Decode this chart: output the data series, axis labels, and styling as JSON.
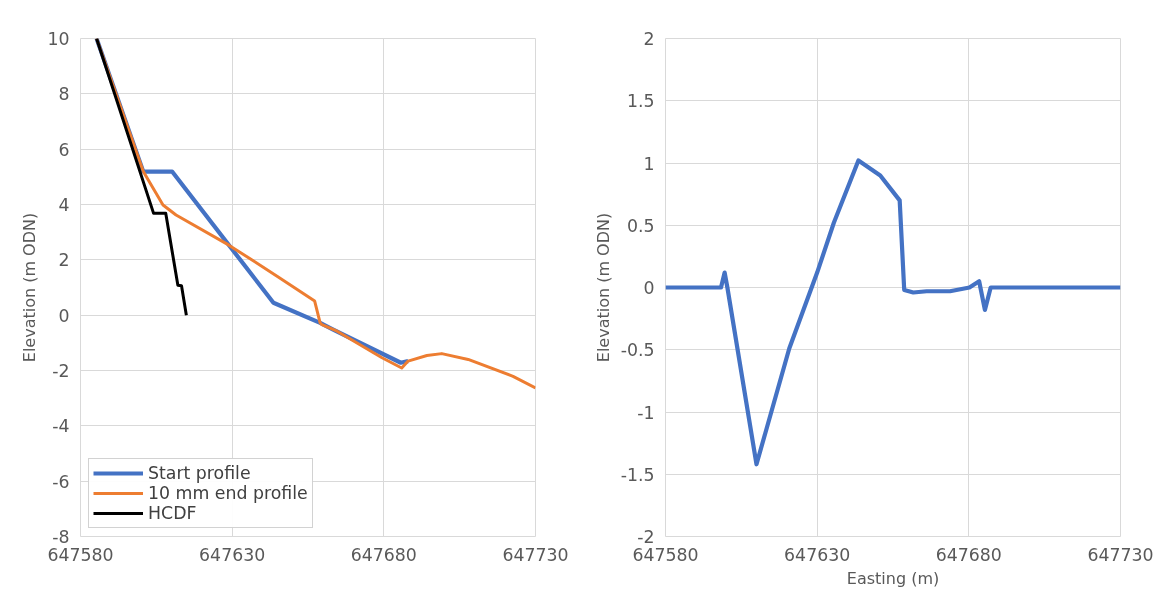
{
  "chart_data": [
    {
      "type": "line",
      "ylabel": "Elevation (m ODN)",
      "xlim": [
        647580,
        647730
      ],
      "ylim": [
        -8,
        10
      ],
      "xticks": [
        647580,
        647630,
        647680,
        647730
      ],
      "yticks": [
        -8,
        -6,
        -4,
        -2,
        0,
        2,
        4,
        6,
        8,
        10
      ],
      "grid": true,
      "legend": "bottom left",
      "line_style": "solid",
      "marker": "none",
      "series": [
        {
          "name": "Start profile",
          "color": "#4472c4",
          "x": [
            647585.3,
            647600.7,
            647610.2,
            647643.6,
            647659.0,
            647663.3,
            647685.6,
            647688.0
          ],
          "values": [
            10,
            5.19,
            5.19,
            0.45,
            -0.28,
            -0.52,
            -1.72,
            -1.66
          ]
        },
        {
          "name": "10 mm end profile",
          "color": "#ed7d31",
          "x": [
            647585.3,
            647600.7,
            647607.2,
            647611.5,
            647628.8,
            647644.8,
            647657.2,
            647659.0,
            647659.6,
            647664.6,
            647679.4,
            647685.9,
            647688.0,
            647694.2,
            647699.1,
            647707.8,
            647722.6,
            647730.0
          ],
          "values": [
            10,
            5.19,
            3.98,
            3.62,
            2.54,
            1.41,
            0.51,
            -0.28,
            -0.34,
            -0.58,
            -1.54,
            -1.91,
            -1.66,
            -1.46,
            -1.39,
            -1.6,
            -2.21,
            -2.63
          ]
        },
        {
          "name": "HCDF",
          "color": "#000000",
          "x": [
            647585.3,
            647604.1,
            647608.1,
            647612.1,
            647613.3,
            647614.9
          ],
          "values": [
            10,
            3.68,
            3.68,
            1.08,
            1.06,
            0
          ]
        }
      ]
    },
    {
      "type": "line",
      "xlabel": "Easting (m)",
      "ylabel": "Elevation (m ODN)",
      "xlim": [
        647580,
        647730
      ],
      "ylim": [
        -2,
        2
      ],
      "xticks": [
        647580,
        647630,
        647680,
        647730
      ],
      "yticks": [
        -2,
        -1.5,
        -1,
        -0.5,
        0,
        0.5,
        1,
        1.5,
        2
      ],
      "grid": true,
      "line_style": "solid",
      "marker": "none",
      "series": [
        {
          "color": "#4472c4",
          "x": [
            647580,
            647598.3,
            647599.5,
            647600.4,
            647610.0,
            647620.8,
            647630,
            647635.5,
            647643.6,
            647650.8,
            647657.2,
            647658.7,
            647661.7,
            647666.1,
            647673.8,
            647680.2,
            647683.4,
            647685.3,
            647687.2,
            647730
          ],
          "values": [
            0,
            0,
            0.12,
            0,
            -1.42,
            -0.49,
            0.12,
            0.52,
            1.02,
            0.9,
            0.7,
            -0.02,
            -0.04,
            -0.03,
            -0.03,
            0,
            0.05,
            -0.18,
            0,
            0
          ]
        }
      ]
    }
  ]
}
